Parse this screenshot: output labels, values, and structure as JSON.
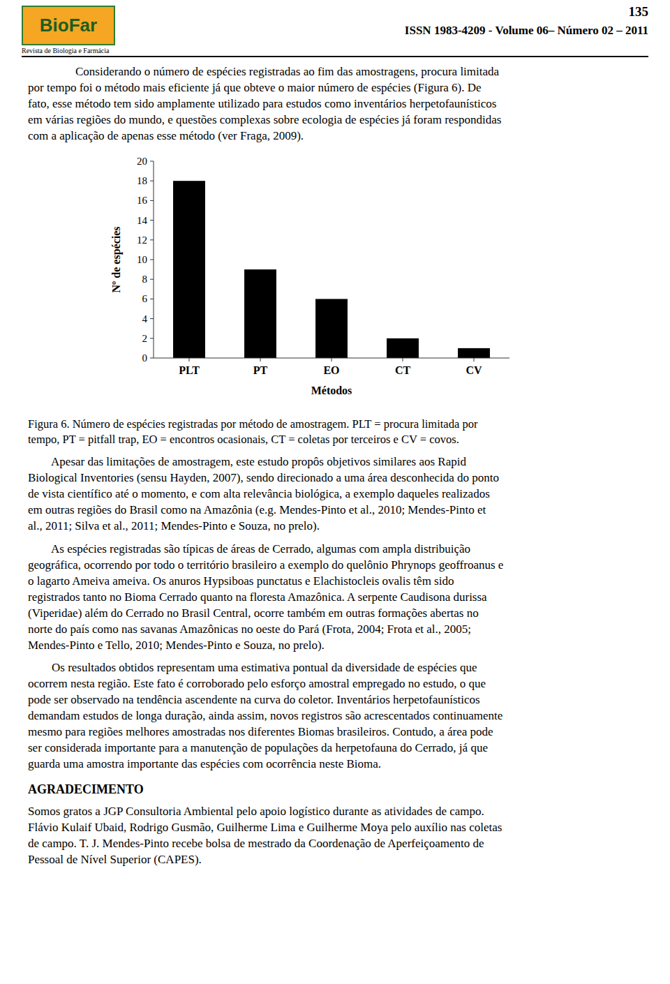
{
  "chart_data": {
    "type": "bar",
    "categories": [
      "PLT",
      "PT",
      "EO",
      "CT",
      "CV"
    ],
    "values": [
      18,
      9,
      6,
      2,
      1
    ],
    "color": "#000000",
    "xlabel": "Métodos",
    "ylabel": "Nº de espécies",
    "ylim": [
      0,
      20
    ],
    "yticks": [
      0,
      2,
      4,
      6,
      8,
      10,
      12,
      14,
      16,
      18,
      20
    ],
    "grid": false
  },
  "page_number": "135",
  "header_text": "ISSN 1983-4209 - Volume 06– Número 02 – 2011",
  "logo_text": "BioFar",
  "logo_sub": "Revista de Biologia e Farmácia",
  "intro_text": "Considerando o número de espécies registradas ao fim das amostragens, procura limitada\npor tempo foi o método mais eficiente já que obteve o maior número de espécies (Figura 6). De\nfato, esse método tem sido amplamente utilizado para estudos como inventários herpetofaunísticos\nem várias regiões do mundo, e questões complexas sobre ecologia de espécies já foram respondidas\ncom a aplicação de apenas esse método (ver Fraga, 2009).",
  "fig_caption": "Figura 6. Número de espécies registradas por método de amostragem. PLT = procura limitada por\ntempo, PT = pitfall trap, EO = encontros ocasionais, CT = coletas por terceiros e CV = covos.",
  "paragraph2": "        Apesar das limitações de amostragem, este estudo propôs objetivos similares aos Rapid\nBiological Inventories (sensu Hayden, 2007), sendo direcionado a uma área desconhecida do ponto\nde vista científico até o momento, e com alta relevância biológica, a exemplo daqueles realizados\nem outras regiões do Brasil como na Amazônia (e.g. Mendes-Pinto et al., 2010; Mendes-Pinto et\nal., 2011; Silva et al., 2011; Mendes-Pinto e Souza, no prelo).",
  "paragraph3": "        As espécies registradas são típicas de áreas de Cerrado, algumas com ampla distribuição\ngeográfica, ocorrendo por todo o território brasileiro a exemplo do quelônio Phrynops geoffroanus e\no lagarto Ameiva ameiva. Os anuros Hypsiboas punctatus e Elachistocleis ovalis têm sido\nregistrados tanto no Bioma Cerrado quanto na floresta Amazônica. A serpente Caudisona durissa\n(Viperidae) além do Cerrado no Brasil Central, ocorre também em outras formações abertas no\nnorte do país como nas savanas Amazônicas no oeste do Pará (Frota, 2004; Frota et al., 2005;\nMendes-Pinto e Tello, 2010; Mendes-Pinto e Souza, no prelo).",
  "paragraph4": "        Os resultados obtidos representam uma estimativa pontual da diversidade de espécies que\nocorrem nesta região. Este fato é corroborado pelo esforço amostral empregado no estudo, o que\npode ser observado na tendência ascendente na curva do coletor. Inventários herpetofaunísticos\ndemandam estudos de longa duração, ainda assim, novos registros são acrescentados continuamente\nmesmo para regiões melhores amostradas nos diferentes Biomas brasileiros. Contudo, a área pode\nser considerada importante para a manutenção de populações da herpetofauna do Cerrado, já que\nguarda uma amostra importante das espécies com ocorrência neste Bioma.",
  "agradecimento_title": "AGRADECIMENTO",
  "agradecimento_text": "Somos gratos a JGP Consultoria Ambiental pelo apoio logístico durante as atividades de campo.\nFlávio Kulaif Ubaid, Rodrigo Gusmão, Guilherme Lima e Guilherme Moya pelo auxílio nas coletas\nde campo. T. J. Mendes-Pinto recebe bolsa de mestrado da Coordenação de Aperfeiçoamento de\nPessoal de Nível Superior (CAPES)."
}
